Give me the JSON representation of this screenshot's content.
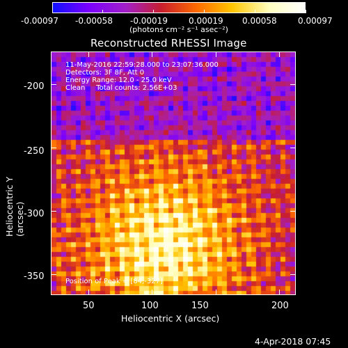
{
  "colorbar": {
    "tick_labels": [
      "-0.00097",
      "-0.00058",
      "-0.00019",
      "0.00019",
      "0.00058",
      "0.00097"
    ],
    "unit_label": "(photons cm⁻² s⁻¹ asec⁻²)",
    "range": [
      -0.00097,
      0.00097
    ],
    "colors": [
      "#1010ff",
      "#7a00ff",
      "#a21fc8",
      "#c81e2e",
      "#ff6a00",
      "#ffc400",
      "#ffffc0",
      "#ffffff"
    ]
  },
  "title": "Reconstructed RHESSI Image",
  "info": {
    "line1": "11-May-2016 22:59:28.000 to 23:07:36.000",
    "line2": "Detectors: 3F 8F, Att 0",
    "line3": "Energy Range: 12.0 - 25.0 keV",
    "line4": "Clean     Total counts: 2.56E+03"
  },
  "peak_label": "Position of Peak = [84,-327]",
  "axes": {
    "xlabel": "Heliocentric X (arcsec)",
    "ylabel": "Heliocentric Y (arcsec)",
    "xticks": [
      "50",
      "100",
      "150",
      "200"
    ],
    "yticks": [
      "-200",
      "-250",
      "-300",
      "-350"
    ],
    "xlim": [
      20,
      213
    ],
    "ylim": [
      -366,
      -174
    ]
  },
  "timestamp": "4-Apr-2018 07:45",
  "chart_data": {
    "type": "heatmap",
    "title": "Reconstructed RHESSI Image",
    "xlabel": "Heliocentric X (arcsec)",
    "ylabel": "Heliocentric Y (arcsec)",
    "xlim": [
      20,
      213
    ],
    "ylim": [
      -366,
      -174
    ],
    "colorbar_range": [
      -0.00097,
      0.00097
    ],
    "peak": [
      84,
      -327
    ]
  }
}
